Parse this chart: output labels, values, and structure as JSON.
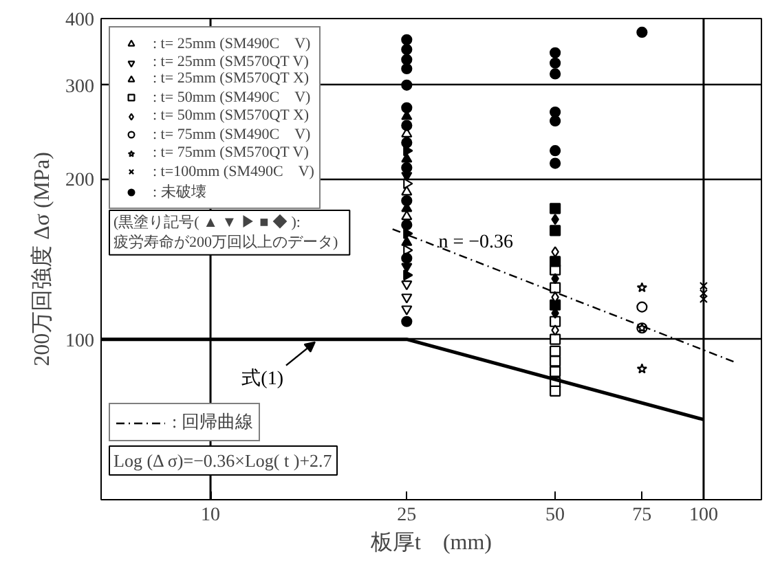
{
  "chart_data": {
    "type": "scatter",
    "xlabel": "板厚t　(mm)",
    "ylabel": "200万回強度 Δσ (MPa)",
    "log": "xy",
    "xlim": [
      6,
      131
    ],
    "ylim": [
      50,
      400
    ],
    "xticks": [
      10,
      25,
      50,
      75,
      100
    ],
    "yticks": [
      100,
      200,
      300,
      400
    ],
    "grid": "y",
    "legend": "top left",
    "ref_lines": [
      {
        "axis": "x",
        "value": 10,
        "label": null
      },
      {
        "axis": "x",
        "value": 100,
        "label": null
      }
    ],
    "annotations": [
      {
        "text": "式(1)",
        "x": 16.5,
        "y": 100
      },
      {
        "text": "n = −0.36",
        "x": 29,
        "y": 152
      },
      "(黒塗り記号( ▲ ▼ ▶ ■ ◆ ):\n  疲労寿命が200万回以上のデータ)",
      "Log (Δ σ)=−0.36×Log( t )+2.7"
    ],
    "series": [
      {
        "name": ": t= 25mm (SM490C　V)",
        "color": "#ffffff",
        "marker": "triangle",
        "x": [
          25,
          25,
          25
        ],
        "values": [
          243,
          189,
          170
        ]
      },
      {
        "color": "#000000",
        "marker": "triangle",
        "x": [
          25,
          25,
          25,
          25
        ],
        "values": [
          262,
          218,
          176,
          152
        ]
      },
      {
        "name": ": t= 25mm (SM570QT V)",
        "color": "#ffffff",
        "marker": "triangle",
        "x": [
          25,
          25,
          25
        ],
        "values": [
          127,
          120,
          114
        ]
      },
      {
        "color": "#000000",
        "marker": "triangle",
        "x": [
          25,
          25
        ],
        "values": [
          203,
          137
        ]
      },
      {
        "name": ": t= 25mm (SM570QT X)",
        "color": "#ffffff",
        "marker": "triangle",
        "x": [
          25,
          25
        ],
        "values": [
          196,
          147
        ]
      },
      {
        "color": "#000000",
        "marker": "triangle",
        "x": [
          25,
          25,
          25
        ],
        "values": [
          226,
          158,
          132
        ]
      },
      {
        "name": ": t= 50mm (SM490C　V)",
        "color": "#ffffff",
        "marker": "square",
        "x": [
          50,
          50,
          50,
          50,
          50,
          50,
          50,
          50,
          50
        ],
        "values": [
          135,
          125,
          108,
          100,
          95,
          91,
          87,
          83,
          80
        ]
      },
      {
        "color": "#000000",
        "marker": "square",
        "x": [
          50,
          50,
          50,
          50
        ],
        "values": [
          176,
          160,
          140,
          116
        ]
      },
      {
        "name": ": t= 50mm (SM570QT X)",
        "color": "#ffffff",
        "marker": "diamond",
        "x": [
          50,
          50,
          50
        ],
        "values": [
          146,
          120,
          104
        ]
      },
      {
        "color": "#000000",
        "marker": "diamond",
        "x": [
          50,
          50,
          50
        ],
        "values": [
          168,
          130,
          112
        ]
      },
      {
        "name": ": t= 75mm (SM490C　V)",
        "color": "#ffffff",
        "marker": "circle",
        "x": [
          75,
          75
        ],
        "values": [
          115,
          105
        ]
      },
      {
        "name": ": t= 75mm (SM570QT V)",
        "color": "#ffffff",
        "marker": "star",
        "x": [
          75,
          75,
          75
        ],
        "values": [
          125,
          105,
          88
        ]
      },
      {
        "name": ": t=100mm (SM490C　V)",
        "color": "#000000",
        "marker": "cross",
        "x": [
          100,
          100,
          100
        ],
        "values": [
          126,
          122,
          119
        ]
      },
      {
        "name": ": 未破壊",
        "color": "#000000",
        "marker": "circle",
        "x": [
          25,
          25,
          25,
          25,
          25,
          25,
          25,
          25,
          25,
          25,
          25,
          25,
          25,
          50,
          50,
          50,
          50,
          50,
          50,
          50,
          75
        ],
        "values": [
          365,
          350,
          335,
          322,
          300,
          272,
          252,
          234,
          210,
          182,
          164,
          142,
          108,
          345,
          330,
          315,
          267,
          257,
          226,
          214,
          377
        ]
      },
      {
        "type": "line",
        "color": "#000000",
        "line_style": "solid",
        "x": [
          6,
          25,
          100
        ],
        "values": [
          100,
          100,
          70.7
        ]
      },
      {
        "type": "line",
        "name": ": 回帰曲線",
        "color": "#000000",
        "line_style": "dashdot",
        "x": [
          23.4,
          115
        ],
        "values": [
          161,
          90.8
        ]
      }
    ]
  }
}
